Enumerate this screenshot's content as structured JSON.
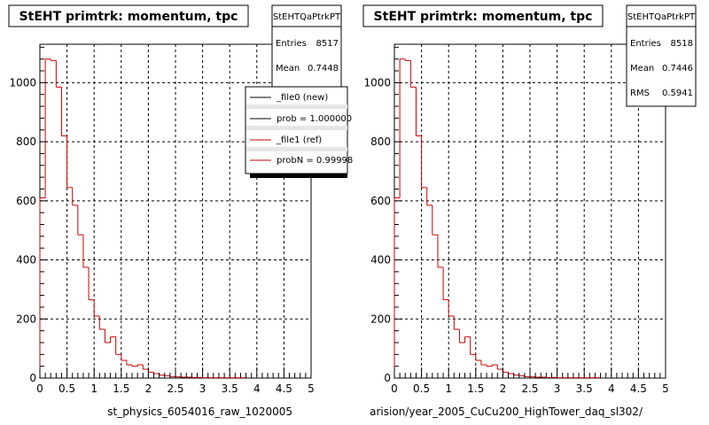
{
  "footer_text": "",
  "chart_data": [
    {
      "type": "bar",
      "title": "StEHT primtrk: momentum, tpc",
      "xlabel": "st_physics_6054016_raw_1020005",
      "xlim": [
        0,
        5
      ],
      "ylim": [
        0,
        1130
      ],
      "x_ticks": [
        "0",
        "0.5",
        "1",
        "1.5",
        "2",
        "2.5",
        "3",
        "3.5",
        "4",
        "4.5",
        "5"
      ],
      "y_ticks": [
        "0",
        "200",
        "400",
        "600",
        "800",
        "1000"
      ],
      "grid": true,
      "stats": {
        "name": "StEHTQaPtrkPT",
        "rows": [
          {
            "label": "Entries",
            "value": "8517"
          },
          {
            "label": "Mean",
            "value": "0.7448"
          }
        ]
      },
      "legend": {
        "position": "top-right",
        "entries": [
          {
            "label": "_file0 (new)",
            "color": "#000000"
          },
          {
            "label": "prob = 1.000000",
            "color": "#000000"
          },
          {
            "label": "_file1 (ref)",
            "color": "#cc0000"
          },
          {
            "label": "probN = 0.99998",
            "color": "#cc0000"
          }
        ]
      },
      "series": [
        {
          "color": "#cc0000",
          "bin_width": 0.1,
          "values": [
            610,
            1080,
            1075,
            985,
            820,
            645,
            585,
            485,
            375,
            265,
            210,
            165,
            120,
            140,
            80,
            60,
            45,
            40,
            45,
            30,
            20,
            15,
            10,
            8,
            5,
            4,
            3,
            3,
            2,
            2,
            1,
            1,
            1,
            1,
            1,
            1,
            1,
            1,
            0,
            0,
            0,
            0,
            0,
            0,
            0,
            0,
            0,
            0,
            0,
            0
          ]
        }
      ]
    },
    {
      "type": "bar",
      "title": "StEHT primtrk: momentum, tpc",
      "xlabel": "arision/year_2005_CuCu200_HighTower_daq_sl302/",
      "xlim": [
        0,
        5
      ],
      "ylim": [
        0,
        1130
      ],
      "x_ticks": [
        "0",
        "0.5",
        "1",
        "1.5",
        "2",
        "2.5",
        "3",
        "3.5",
        "4",
        "4.5",
        "5"
      ],
      "y_ticks": [
        "0",
        "200",
        "400",
        "600",
        "800",
        "1000"
      ],
      "grid": true,
      "stats": {
        "name": "StEHTQaPtrkPT",
        "rows": [
          {
            "label": "Entries",
            "value": "8518"
          },
          {
            "label": "Mean",
            "value": "0.7446"
          },
          {
            "label": "RMS",
            "value": "0.5941"
          }
        ]
      },
      "series": [
        {
          "color": "#cc0000",
          "bin_width": 0.1,
          "values": [
            610,
            1080,
            1075,
            985,
            820,
            645,
            585,
            485,
            375,
            265,
            210,
            165,
            120,
            140,
            80,
            60,
            45,
            40,
            45,
            30,
            20,
            15,
            10,
            8,
            5,
            4,
            3,
            3,
            2,
            2,
            1,
            1,
            1,
            1,
            1,
            1,
            1,
            1,
            0,
            0,
            0,
            0,
            0,
            0,
            0,
            0,
            0,
            0,
            0,
            0
          ]
        }
      ]
    }
  ]
}
